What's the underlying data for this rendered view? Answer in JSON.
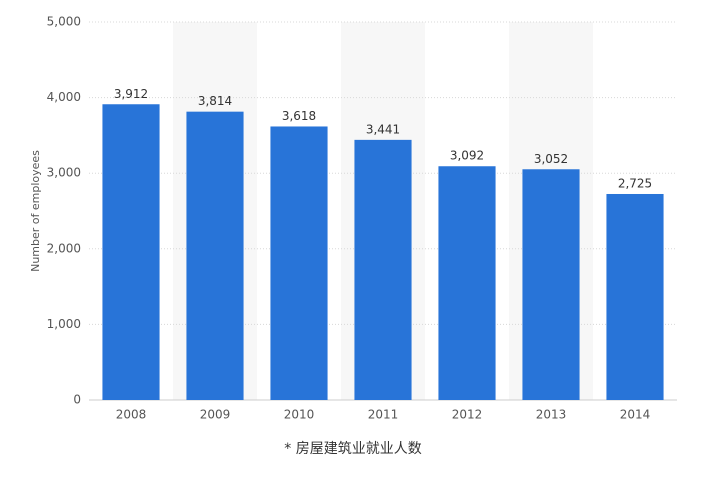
{
  "chart_data": {
    "type": "bar",
    "y_label": "Number of employees",
    "annotation": "* 房屋建筑业就业人数",
    "categories": [
      "2008",
      "2009",
      "2010",
      "2011",
      "2012",
      "2013",
      "2014"
    ],
    "values": [
      3912,
      3814,
      3618,
      3441,
      3092,
      3052,
      2725
    ],
    "value_labels": [
      "3,912",
      "3,814",
      "3,618",
      "3,441",
      "3,092",
      "3,052",
      "2,725"
    ],
    "color": "#2874d8",
    "ylim": [
      0,
      5000
    ],
    "yticks": [
      0,
      {
        "value": 1000,
        "label": "1,000"
      },
      {
        "value": 2000,
        "label": "2,000"
      },
      {
        "value": 3000,
        "label": "3,000"
      },
      {
        "value": 4000,
        "label": "4,000"
      },
      {
        "value": 5000,
        "label": "5,000"
      }
    ],
    "grid": true
  }
}
